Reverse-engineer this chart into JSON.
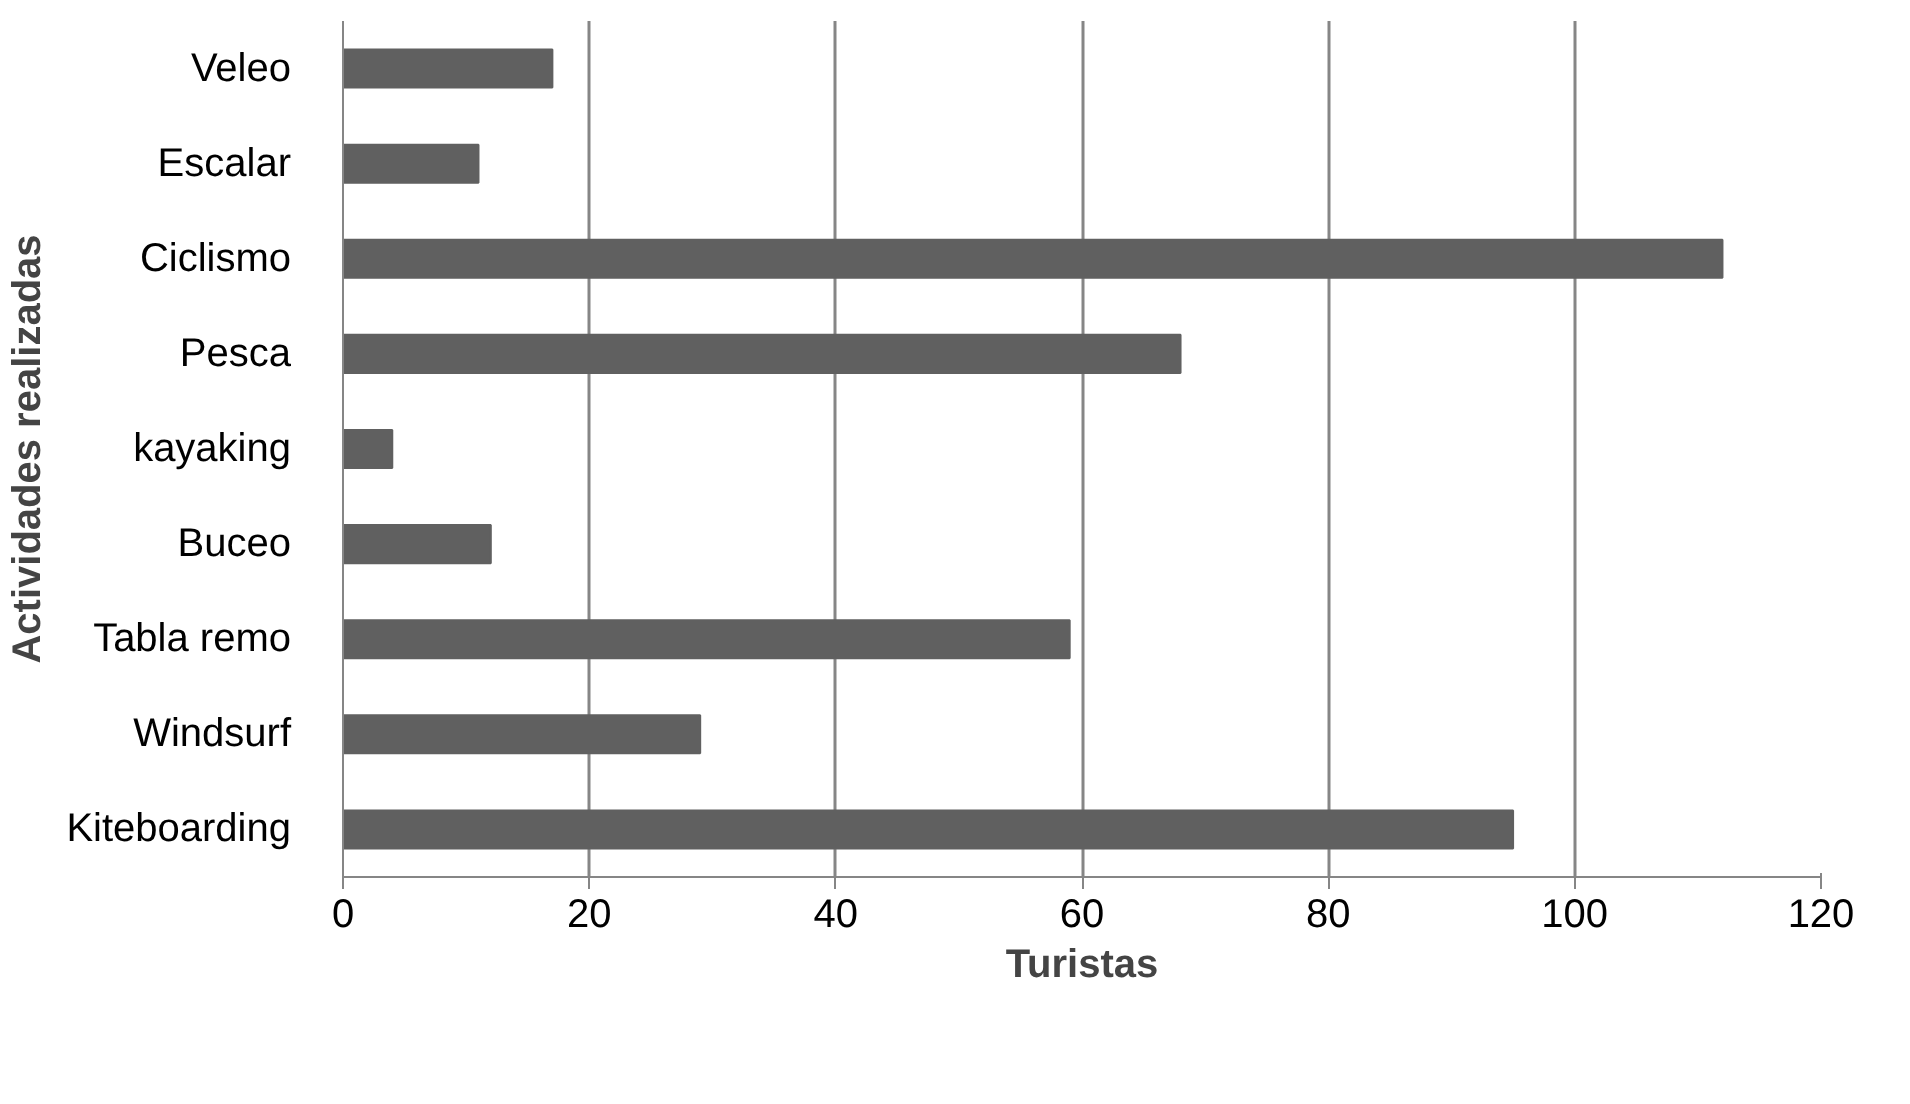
{
  "chart_data": {
    "type": "bar",
    "orientation": "horizontal",
    "xlabel": "Turistas",
    "ylabel": "Actividades realizadas",
    "categories": [
      "Veleo",
      "Escalar",
      "Ciclismo",
      "Pesca",
      "kayaking",
      "Buceo",
      "Tabla remo",
      "Windsurf",
      "Kiteboarding"
    ],
    "values": [
      17,
      11,
      112,
      68,
      4,
      12,
      59,
      29,
      95
    ],
    "color": "#606060",
    "xlim": [
      0,
      120
    ],
    "xticks": [
      0,
      20,
      40,
      60,
      80,
      100,
      120
    ],
    "grid": "x"
  }
}
